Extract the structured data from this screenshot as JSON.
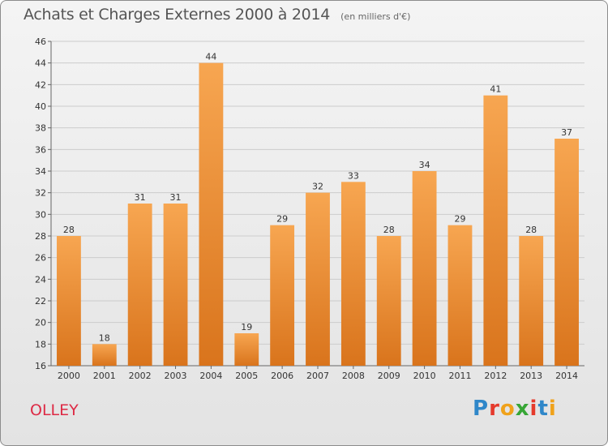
{
  "header": {
    "title": "Achats et Charges Externes 2000 à 2014",
    "subtitle": "(en milliers d'€)"
  },
  "commune": "OLLEY",
  "logo": {
    "text": "Proxiti",
    "letter_colors": [
      "#2f87c9",
      "#e53a2c",
      "#f0a21b",
      "#37a636",
      "#e53a2c",
      "#2f87c9",
      "#f0a21b"
    ]
  },
  "colors": {
    "bar_top": "#f7a651",
    "bar_bottom": "#d9741c",
    "grid": "#cccccc"
  },
  "chart_data": {
    "type": "bar",
    "title": "Achats et Charges Externes 2000 à 2014",
    "subtitle": "(en milliers d'€)",
    "categories": [
      "2000",
      "2001",
      "2002",
      "2003",
      "2004",
      "2005",
      "2006",
      "2007",
      "2008",
      "2009",
      "2010",
      "2011",
      "2012",
      "2013",
      "2014"
    ],
    "values": [
      28,
      18,
      31,
      31,
      44,
      19,
      29,
      32,
      33,
      28,
      34,
      29,
      41,
      28,
      37
    ],
    "ylim": [
      16,
      46
    ],
    "yticks": [
      16,
      18,
      20,
      22,
      24,
      26,
      28,
      30,
      32,
      34,
      36,
      38,
      40,
      42,
      44,
      46
    ],
    "grid": "horizontal",
    "xlabel": "",
    "ylabel": ""
  }
}
